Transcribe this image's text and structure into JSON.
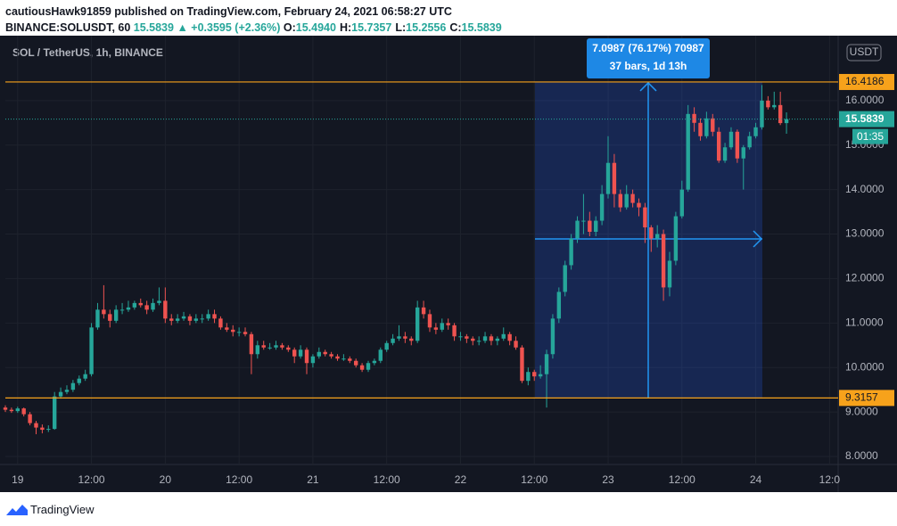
{
  "header": {
    "byline": "cautiousHawk91859 published on TradingView.com, February 24, 2021 06:58:27 UTC",
    "symbol": "BINANCE:SOLUSDT, 60",
    "last": "15.5839",
    "change": "▲ +0.3595 (+2.36%)",
    "ohlc": [
      {
        "key": "O:",
        "value": "15.4940"
      },
      {
        "key": "H:",
        "value": "15.7357"
      },
      {
        "key": "L:",
        "value": "15.2556"
      },
      {
        "key": "C:",
        "value": "15.5839"
      }
    ]
  },
  "footer": {
    "brand": "TradingView"
  },
  "chart_data": {
    "type": "candlestick",
    "title": "SOL / TetherUS, 1h, BINANCE",
    "currency": "USDT",
    "up_color": "#26a69a",
    "down_color": "#ef5350",
    "candles": [
      [
        9.1,
        9.15,
        9.0,
        9.05
      ],
      [
        9.05,
        9.1,
        8.98,
        9.02
      ],
      [
        9.02,
        9.12,
        8.98,
        9.08
      ],
      [
        9.08,
        9.1,
        8.9,
        8.95
      ],
      [
        8.95,
        9.0,
        8.7,
        8.75
      ],
      [
        8.75,
        8.8,
        8.5,
        8.65
      ],
      [
        8.65,
        8.72,
        8.52,
        8.6
      ],
      [
        8.6,
        8.7,
        8.55,
        8.62
      ],
      [
        8.62,
        9.45,
        8.6,
        9.35
      ],
      [
        9.35,
        9.55,
        9.3,
        9.45
      ],
      [
        9.45,
        9.6,
        9.4,
        9.5
      ],
      [
        9.5,
        9.72,
        9.45,
        9.65
      ],
      [
        9.65,
        9.82,
        9.6,
        9.75
      ],
      [
        9.75,
        9.95,
        9.7,
        9.85
      ],
      [
        9.85,
        11.0,
        9.8,
        10.9
      ],
      [
        10.9,
        11.45,
        10.85,
        11.3
      ],
      [
        11.3,
        11.85,
        11.1,
        11.2
      ],
      [
        11.2,
        11.3,
        10.9,
        11.05
      ],
      [
        11.05,
        11.4,
        11.0,
        11.3
      ],
      [
        11.3,
        11.45,
        11.2,
        11.3
      ],
      [
        11.3,
        11.5,
        11.25,
        11.35
      ],
      [
        11.35,
        11.5,
        11.3,
        11.45
      ],
      [
        11.45,
        11.55,
        11.35,
        11.4
      ],
      [
        11.4,
        11.5,
        11.2,
        11.3
      ],
      [
        11.3,
        11.55,
        11.25,
        11.45
      ],
      [
        11.45,
        11.8,
        11.4,
        11.5
      ],
      [
        11.5,
        11.8,
        11.0,
        11.1
      ],
      [
        11.1,
        11.2,
        10.95,
        11.05
      ],
      [
        11.05,
        11.2,
        11.0,
        11.1
      ],
      [
        11.1,
        11.25,
        11.05,
        11.15
      ],
      [
        11.15,
        11.2,
        10.95,
        11.05
      ],
      [
        11.05,
        11.2,
        11.0,
        11.1
      ],
      [
        11.1,
        11.2,
        11.0,
        11.1
      ],
      [
        11.1,
        11.3,
        11.05,
        11.2
      ],
      [
        11.2,
        11.3,
        11.0,
        11.1
      ],
      [
        11.1,
        11.15,
        10.85,
        10.9
      ],
      [
        10.9,
        11.0,
        10.8,
        10.85
      ],
      [
        10.85,
        10.95,
        10.7,
        10.8
      ],
      [
        10.8,
        10.9,
        10.7,
        10.8
      ],
      [
        10.8,
        10.9,
        10.7,
        10.75
      ],
      [
        10.75,
        10.8,
        9.85,
        10.3
      ],
      [
        10.3,
        10.6,
        10.2,
        10.5
      ],
      [
        10.5,
        10.6,
        10.4,
        10.45
      ],
      [
        10.45,
        10.55,
        10.4,
        10.45
      ],
      [
        10.45,
        10.6,
        10.4,
        10.5
      ],
      [
        10.5,
        10.55,
        10.4,
        10.45
      ],
      [
        10.45,
        10.5,
        10.35,
        10.4
      ],
      [
        10.4,
        10.45,
        10.1,
        10.25
      ],
      [
        10.25,
        10.5,
        10.2,
        10.4
      ],
      [
        10.4,
        10.45,
        9.85,
        10.1
      ],
      [
        10.1,
        10.3,
        10.0,
        10.25
      ],
      [
        10.25,
        10.45,
        10.2,
        10.35
      ],
      [
        10.35,
        10.4,
        10.25,
        10.3
      ],
      [
        10.3,
        10.35,
        10.2,
        10.25
      ],
      [
        10.25,
        10.3,
        10.15,
        10.2
      ],
      [
        10.2,
        10.3,
        10.15,
        10.2
      ],
      [
        10.2,
        10.25,
        10.1,
        10.15
      ],
      [
        10.15,
        10.2,
        10.0,
        10.05
      ],
      [
        10.05,
        10.1,
        9.9,
        9.95
      ],
      [
        9.95,
        10.15,
        9.9,
        10.1
      ],
      [
        10.1,
        10.2,
        10.05,
        10.15
      ],
      [
        10.15,
        10.45,
        10.1,
        10.4
      ],
      [
        10.4,
        10.6,
        10.35,
        10.55
      ],
      [
        10.55,
        10.75,
        10.5,
        10.65
      ],
      [
        10.65,
        10.95,
        10.6,
        10.7
      ],
      [
        10.7,
        10.8,
        10.55,
        10.65
      ],
      [
        10.65,
        10.7,
        10.5,
        10.6
      ],
      [
        10.6,
        11.5,
        10.55,
        11.35
      ],
      [
        11.35,
        11.5,
        11.1,
        11.2
      ],
      [
        11.2,
        11.3,
        10.8,
        10.9
      ],
      [
        10.9,
        11.0,
        10.75,
        10.85
      ],
      [
        10.85,
        11.1,
        10.8,
        11.0
      ],
      [
        11.0,
        11.1,
        10.85,
        10.95
      ],
      [
        10.95,
        11.0,
        10.6,
        10.7
      ],
      [
        10.7,
        10.8,
        10.6,
        10.7
      ],
      [
        10.7,
        10.75,
        10.55,
        10.65
      ],
      [
        10.65,
        10.7,
        10.5,
        10.6
      ],
      [
        10.6,
        10.7,
        10.5,
        10.6
      ],
      [
        10.6,
        10.8,
        10.55,
        10.7
      ],
      [
        10.7,
        10.75,
        10.5,
        10.6
      ],
      [
        10.6,
        10.7,
        10.5,
        10.65
      ],
      [
        10.65,
        10.9,
        10.6,
        10.75
      ],
      [
        10.75,
        10.8,
        10.5,
        10.6
      ],
      [
        10.6,
        10.7,
        10.4,
        10.45
      ],
      [
        10.45,
        10.5,
        9.65,
        9.7
      ],
      [
        9.7,
        10.0,
        9.6,
        9.9
      ],
      [
        9.9,
        9.95,
        9.7,
        9.8
      ],
      [
        9.8,
        10.05,
        9.75,
        9.85
      ],
      [
        9.85,
        10.4,
        9.1,
        10.3
      ],
      [
        10.3,
        11.2,
        10.2,
        11.1
      ],
      [
        11.1,
        11.8,
        11.0,
        11.7
      ],
      [
        11.7,
        12.4,
        11.6,
        12.3
      ],
      [
        12.3,
        13.0,
        12.2,
        12.9
      ],
      [
        12.9,
        13.4,
        12.8,
        13.3
      ],
      [
        13.3,
        13.9,
        13.0,
        13.3
      ],
      [
        13.3,
        13.5,
        12.95,
        13.05
      ],
      [
        13.05,
        13.4,
        12.95,
        13.3
      ],
      [
        13.3,
        14.1,
        13.2,
        13.9
      ],
      [
        13.9,
        15.2,
        13.8,
        14.6
      ],
      [
        14.6,
        14.8,
        13.6,
        13.9
      ],
      [
        13.9,
        14.0,
        13.5,
        13.6
      ],
      [
        13.6,
        14.1,
        13.55,
        13.9
      ],
      [
        13.9,
        14.0,
        13.6,
        13.7
      ],
      [
        13.7,
        13.8,
        13.4,
        13.6
      ],
      [
        13.6,
        13.7,
        12.8,
        13.15
      ],
      [
        13.15,
        13.2,
        12.6,
        12.9
      ],
      [
        12.9,
        13.2,
        12.7,
        13.0
      ],
      [
        13.0,
        13.1,
        11.5,
        11.8
      ],
      [
        11.8,
        12.6,
        11.6,
        12.4
      ],
      [
        12.4,
        13.5,
        12.3,
        13.4
      ],
      [
        13.4,
        14.2,
        13.35,
        14.0
      ],
      [
        14.0,
        15.9,
        13.95,
        15.7
      ],
      [
        15.7,
        15.85,
        15.3,
        15.5
      ],
      [
        15.5,
        15.6,
        15.1,
        15.2
      ],
      [
        15.2,
        15.75,
        15.15,
        15.6
      ],
      [
        15.6,
        15.7,
        15.2,
        15.3
      ],
      [
        15.3,
        15.4,
        14.6,
        14.65
      ],
      [
        14.65,
        15.05,
        14.6,
        14.95
      ],
      [
        14.95,
        15.4,
        14.9,
        15.3
      ],
      [
        15.3,
        15.35,
        14.6,
        14.7
      ],
      [
        14.7,
        15.0,
        14.0,
        14.95
      ],
      [
        14.95,
        15.3,
        14.9,
        15.2
      ],
      [
        15.2,
        15.5,
        15.15,
        15.4
      ],
      [
        15.4,
        16.35,
        15.35,
        16.0
      ],
      [
        16.0,
        16.1,
        15.8,
        15.85
      ],
      [
        15.85,
        16.2,
        15.8,
        15.9
      ],
      [
        15.9,
        16.2,
        15.45,
        15.494
      ],
      [
        15.494,
        15.7357,
        15.2556,
        15.5839
      ]
    ],
    "xlim": [
      0,
      135.4
    ],
    "xticks": [
      {
        "value": 2,
        "label": "19"
      },
      {
        "value": 14,
        "label": "12:00"
      },
      {
        "value": 26,
        "label": "20"
      },
      {
        "value": 38,
        "label": "12:00"
      },
      {
        "value": 50,
        "label": "21"
      },
      {
        "value": 62,
        "label": "12:00"
      },
      {
        "value": 74,
        "label": "22"
      },
      {
        "value": 86,
        "label": "12:00"
      },
      {
        "value": 98,
        "label": "23"
      },
      {
        "value": 110,
        "label": "12:00"
      },
      {
        "value": 122,
        "label": "24"
      },
      {
        "value": 134,
        "label": "12:0"
      }
    ],
    "ylim": [
      7.82,
      17.46
    ],
    "yticks": [
      {
        "value": 8,
        "label": "8.0000"
      },
      {
        "value": 9,
        "label": "9.0000"
      },
      {
        "value": 10,
        "label": "10.0000"
      },
      {
        "value": 11,
        "label": "11.0000"
      },
      {
        "value": 12,
        "label": "12.0000"
      },
      {
        "value": 13,
        "label": "13.0000"
      },
      {
        "value": 14,
        "label": "14.0000"
      },
      {
        "value": 15,
        "label": "15.0000"
      },
      {
        "value": 16,
        "label": "16.0000"
      }
    ],
    "levels": [
      16.4186,
      9.3157
    ],
    "level_color": "#f7a21b",
    "last_price": 15.5839,
    "countdown": "01:35",
    "measure": {
      "label": "7.0987 (76.17%) 70987",
      "detail": "37 bars, 1d 13h"
    }
  }
}
